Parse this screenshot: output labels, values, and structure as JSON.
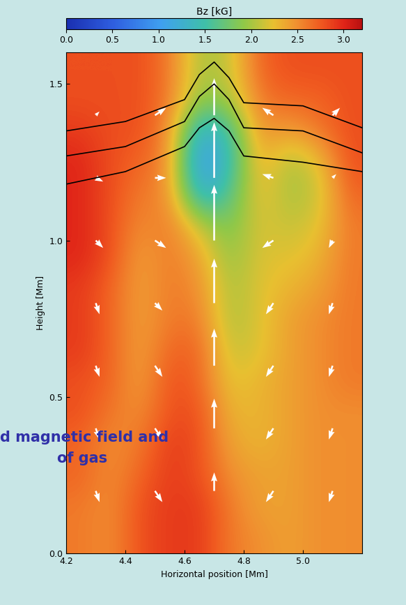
{
  "chart_data": {
    "type": "heatmap",
    "x_label": "Horizontal position [Mm]",
    "y_label": "Height [Mm]",
    "xlim": [
      4.2,
      5.2
    ],
    "ylim": [
      0,
      1.6
    ],
    "xticks": [
      4.2,
      4.4,
      4.6,
      4.8,
      {
        "value": 5.0,
        "label": "5.0"
      }
    ],
    "yticks": [
      {
        "value": 0,
        "label": "0.0"
      },
      0.5,
      {
        "value": 1.0,
        "label": "1.0"
      },
      1.5
    ],
    "x": [
      4.25,
      4.35,
      4.45,
      4.55,
      4.65,
      4.75,
      4.85,
      4.95,
      5.05,
      5.15
    ],
    "y": [
      0.05,
      0.15,
      0.25,
      0.35,
      0.45,
      0.55,
      0.65,
      0.75,
      0.85,
      0.95,
      1.05,
      1.15,
      1.25,
      1.35,
      1.45,
      1.55
    ],
    "cells": [
      [
        2.6,
        2.5,
        2.8,
        2.9,
        2.9,
        2.6,
        2.5,
        2.4,
        2.5,
        2.5
      ],
      [
        2.6,
        2.5,
        2.8,
        2.9,
        2.9,
        2.6,
        2.4,
        2.4,
        2.5,
        2.5
      ],
      [
        2.7,
        2.5,
        2.7,
        2.9,
        2.8,
        2.5,
        2.4,
        2.4,
        2.5,
        2.5
      ],
      [
        2.7,
        2.5,
        2.6,
        2.9,
        2.8,
        2.4,
        2.3,
        2.4,
        2.5,
        2.5
      ],
      [
        2.8,
        2.6,
        2.5,
        2.8,
        2.8,
        2.3,
        2.3,
        2.4,
        2.5,
        2.5
      ],
      [
        2.8,
        2.7,
        2.4,
        2.8,
        2.7,
        2.2,
        2.3,
        2.4,
        2.5,
        2.6
      ],
      [
        2.9,
        2.7,
        2.4,
        2.7,
        2.7,
        2.1,
        2.2,
        2.4,
        2.5,
        2.6
      ],
      [
        2.9,
        2.7,
        2.4,
        2.6,
        2.6,
        2.0,
        2.2,
        2.4,
        2.5,
        2.6
      ],
      [
        2.9,
        2.7,
        2.4,
        2.6,
        2.5,
        2.0,
        2.2,
        2.3,
        2.4,
        2.6
      ],
      [
        3.0,
        2.8,
        2.4,
        2.6,
        2.4,
        1.9,
        2.2,
        2.2,
        2.3,
        2.6
      ],
      [
        3.0,
        2.8,
        2.5,
        2.6,
        2.1,
        1.8,
        2.2,
        2.1,
        2.2,
        2.6
      ],
      [
        3.0,
        2.8,
        2.6,
        2.5,
        1.2,
        1.6,
        2.3,
        2.0,
        2.1,
        2.7
      ],
      [
        3.0,
        2.8,
        2.7,
        2.5,
        0.9,
        1.4,
        2.4,
        2.0,
        2.2,
        2.8
      ],
      [
        2.9,
        2.8,
        2.8,
        2.5,
        1.2,
        1.5,
        2.5,
        2.4,
        2.6,
        2.8
      ],
      [
        2.8,
        2.8,
        2.8,
        2.6,
        1.9,
        2.0,
        2.6,
        2.7,
        2.7,
        2.8
      ],
      [
        2.8,
        2.8,
        2.8,
        2.6,
        2.0,
        2.1,
        2.7,
        2.8,
        2.8,
        2.8
      ]
    ],
    "colorbar": {
      "label": "Bz [kG]",
      "range": [
        0,
        3.2
      ],
      "ticks": [
        {
          "value": 0,
          "label": "0.0"
        },
        0.5,
        {
          "value": 1.0,
          "label": "1.0"
        },
        1.5,
        {
          "value": 2.0,
          "label": "2.0"
        },
        2.5,
        {
          "value": 3.0,
          "label": "3.0"
        }
      ]
    },
    "vectors": {
      "color": "#ffffff",
      "x": [
        4.3,
        4.5,
        4.7,
        4.9,
        5.1
      ],
      "y": [
        0.2,
        0.4,
        0.6,
        0.8,
        1.0,
        1.2,
        1.4
      ],
      "u": [
        [
          0.1,
          0.2,
          0,
          -0.2,
          -0.1
        ],
        [
          0.1,
          0.2,
          0,
          -0.2,
          -0.1
        ],
        [
          0.1,
          0.2,
          0,
          -0.2,
          -0.1
        ],
        [
          0.1,
          0.2,
          0,
          -0.2,
          -0.1
        ],
        [
          0.2,
          0.3,
          0,
          -0.3,
          -0.1
        ],
        [
          0.2,
          0.3,
          0,
          -0.3,
          0.1
        ],
        [
          0.1,
          0.3,
          0,
          -0.3,
          0.2
        ]
      ],
      "v": [
        [
          -0.3,
          -0.3,
          0.5,
          -0.3,
          -0.3
        ],
        [
          -0.3,
          -0.3,
          0.8,
          -0.3,
          -0.3
        ],
        [
          -0.3,
          -0.3,
          1.0,
          -0.3,
          -0.3
        ],
        [
          -0.3,
          -0.2,
          1.2,
          -0.3,
          -0.3
        ],
        [
          -0.2,
          -0.2,
          1.5,
          -0.2,
          -0.2
        ],
        [
          -0.1,
          0.0,
          1.5,
          0.1,
          0.1
        ],
        [
          0.1,
          0.2,
          1.0,
          0.2,
          0.2
        ]
      ]
    },
    "lines": [
      {
        "color": "#000000",
        "x": [
          4.2,
          4.4,
          4.6,
          4.65,
          4.7,
          4.75,
          4.8,
          5.0,
          5.2
        ],
        "y": [
          1.35,
          1.38,
          1.45,
          1.53,
          1.57,
          1.52,
          1.44,
          1.43,
          1.36
        ]
      },
      {
        "color": "#000000",
        "x": [
          4.2,
          4.4,
          4.6,
          4.65,
          4.7,
          4.75,
          4.8,
          5.0,
          5.2
        ],
        "y": [
          1.27,
          1.3,
          1.38,
          1.46,
          1.5,
          1.45,
          1.36,
          1.35,
          1.28
        ]
      },
      {
        "color": "#000000",
        "x": [
          4.2,
          4.4,
          4.6,
          4.65,
          4.7,
          4.75,
          4.8,
          5.0,
          5.2
        ],
        "y": [
          1.18,
          1.22,
          1.3,
          1.36,
          1.39,
          1.35,
          1.27,
          1.25,
          1.22
        ]
      }
    ],
    "annotations": [
      "d magnetic field and",
      "of gas"
    ]
  }
}
